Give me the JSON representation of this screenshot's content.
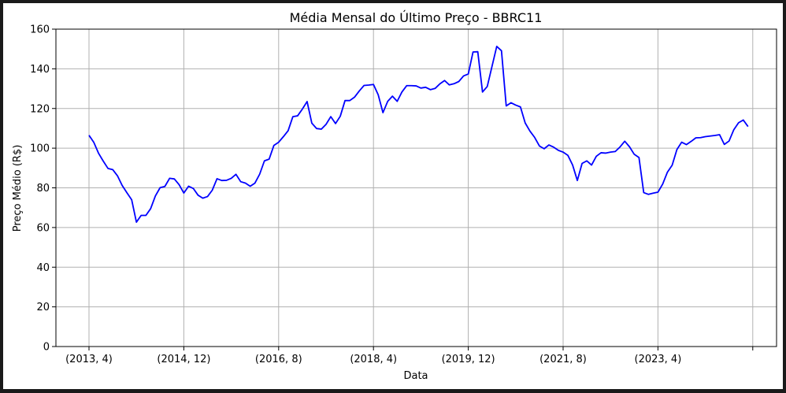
{
  "chart_data": {
    "type": "line",
    "title": "Média Mensal do Último Preço - BBRC11",
    "xlabel": "Data",
    "ylabel": "Preço Médio (R$)",
    "ylim": [
      0,
      160
    ],
    "yticks": [
      0,
      20,
      40,
      60,
      80,
      100,
      120,
      140,
      160
    ],
    "xtick_labels": [
      "(2013, 4)",
      "(2014, 12)",
      "(2016, 8)",
      "(2018, 4)",
      "(2019, 12)",
      "(2021, 8)",
      "(2023, 4)",
      ""
    ],
    "grid": true,
    "line_color": "#0000ff",
    "series": [
      {
        "values": [
          106.5,
          103,
          97.5,
          93.5,
          89.8,
          89.2,
          86.1,
          81.2,
          77.5,
          74,
          62.7,
          66.1,
          66.1,
          69.5,
          75.9,
          80.1,
          80.7,
          84.8,
          84.5,
          81.6,
          77.4,
          80.8,
          79.7,
          76.3,
          74.8,
          75.6,
          78.8,
          84.6,
          83.7,
          83.8,
          84.8,
          86.8,
          83.1,
          82.4,
          80.8,
          82.4,
          86.9,
          93.6,
          94.5,
          101.4,
          103,
          105.8,
          108.8,
          115.9,
          116.3,
          119.7,
          123.5,
          112.6,
          109.9,
          109.6,
          112,
          115.9,
          112.4,
          116.1,
          124,
          124,
          125.7,
          128.8,
          131.6,
          131.8,
          132.1,
          126.9,
          117.9,
          123.6,
          126.2,
          123.6,
          128.3,
          131.5,
          131.5,
          131.4,
          130.3,
          130.7,
          129.5,
          130.1,
          132.4,
          134.1,
          131.9,
          132.5,
          133.6,
          136.4,
          137.4,
          148.5,
          148.6,
          128.3,
          131.1,
          141.2,
          151.3,
          149.1,
          121.3,
          122.9,
          121.7,
          120.8,
          112.7,
          108.6,
          105.4,
          101.1,
          99.7,
          101.6,
          100.5,
          98.9,
          98,
          96.4,
          91.5,
          83.7,
          92.3,
          93.6,
          91.5,
          95.9,
          97.7,
          97.5,
          98,
          98.3,
          100.6,
          103.5,
          100.7,
          96.9,
          95.3,
          77.6,
          76.7,
          77.3,
          77.8,
          81.9,
          87.9,
          91.4,
          99.3,
          103,
          101.8,
          103.4,
          105.2,
          105.3,
          105.8,
          106.1,
          106.4,
          106.8,
          101.9,
          103.6,
          109.3,
          112.8,
          114.2,
          110.9
        ]
      }
    ]
  }
}
